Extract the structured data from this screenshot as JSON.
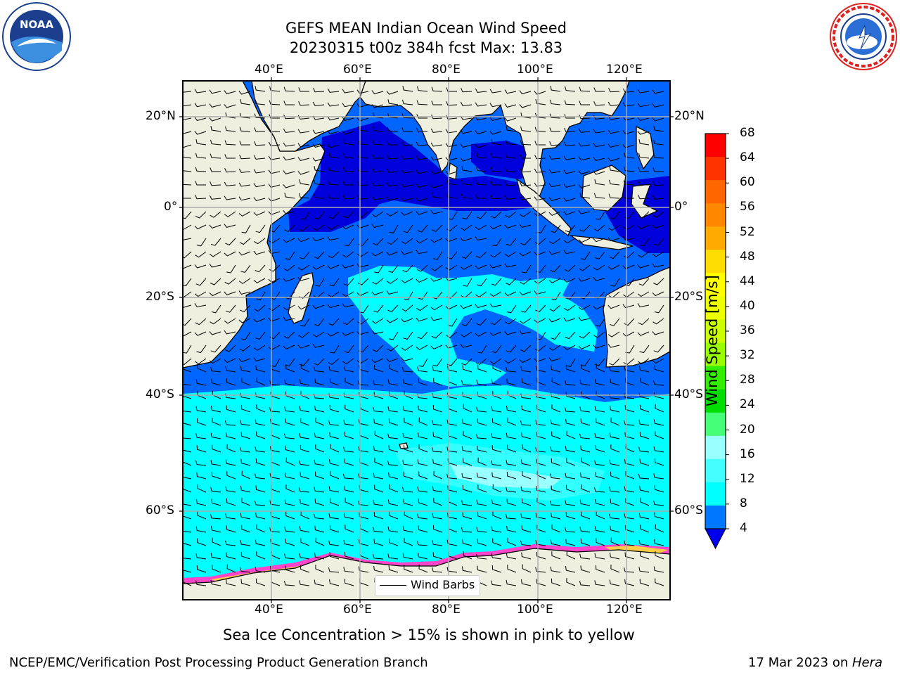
{
  "header": {
    "title_line1": "GEFS MEAN Indian Ocean Wind Speed",
    "title_line2": "20230315 t00z 384h fcst   Max: 13.83"
  },
  "logos": {
    "left": {
      "name": "noaa-logo",
      "text": "NOAA",
      "ring_text": "NATIONAL OCEANIC AND ATMOSPHERIC ADMINISTRATION · U.S. DEPARTMENT OF COMMERCE"
    },
    "right": {
      "name": "nws-logo",
      "ring_text": "NATIONAL WEATHER SERVICE"
    }
  },
  "map": {
    "lon_ticks_top": [
      "40°E",
      "60°E",
      "80°E",
      "100°E",
      "120°E"
    ],
    "lon_ticks_bottom": [
      "40°E",
      "60°E",
      "80°E",
      "100°E",
      "120°E"
    ],
    "lat_ticks_left": [
      "20°N",
      "0°",
      "20°S",
      "40°S",
      "60°S"
    ],
    "lat_ticks_right": [
      "20°N",
      "0°",
      "20°S",
      "40°S",
      "60°S"
    ],
    "legend_label": "Wind Barbs",
    "colors": {
      "land": "#efefdf",
      "ocean_4_8": "#0066ff",
      "ocean_0_4": "#0000dd",
      "ocean_8_12": "#00ffff",
      "ocean_12_16": "#33ffff",
      "ocean_16_20": "#99ffff",
      "sea_ice_pink": "#ff44cc",
      "sea_ice_yellow": "#ffcc44",
      "grid": "#aaaaaa"
    }
  },
  "colorbar": {
    "label": "Wind Speed [m/s]",
    "ticks": [
      "68",
      "64",
      "60",
      "56",
      "52",
      "48",
      "44",
      "40",
      "36",
      "32",
      "28",
      "24",
      "20",
      "16",
      "12",
      "8",
      "4"
    ],
    "colors": [
      "#ff0000",
      "#ff3300",
      "#ff6600",
      "#ff8800",
      "#ffaa00",
      "#ffdd00",
      "#ffff00",
      "#eeff00",
      "#ccff00",
      "#99ff00",
      "#33ee00",
      "#00dd00",
      "#44ff77",
      "#99ffff",
      "#44ffff",
      "#00ffff",
      "#0077ff"
    ],
    "under_color": "#0000ee"
  },
  "footer": {
    "caption": "Sea Ice Concentration > 15% is shown in pink to yellow",
    "left": "NCEP/EMC/Verification Post Processing Product Generation Branch",
    "right_prefix": "17 Mar 2023 on ",
    "right_machine": "Hera"
  }
}
